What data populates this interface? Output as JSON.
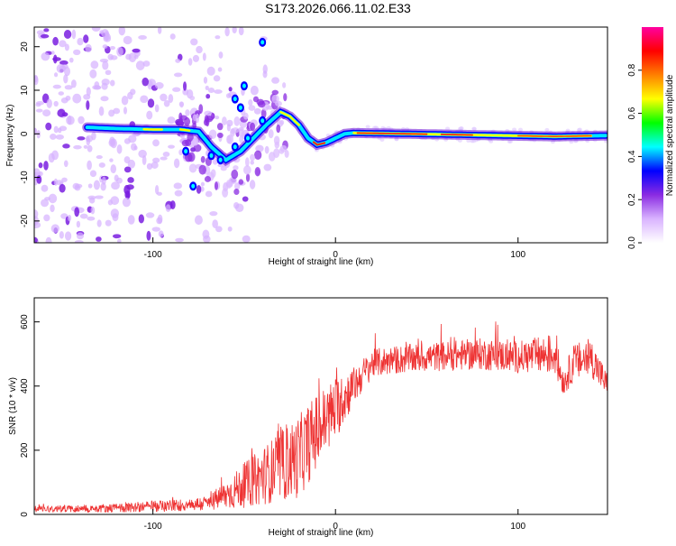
{
  "title": "S173.2026.066.11.02.E33",
  "chart_data": [
    {
      "type": "heatmap",
      "xlabel": "Height of straight line (km)",
      "ylabel": "Frequency (Hz)",
      "xlim": [
        -165,
        149
      ],
      "ylim": [
        -25,
        24.5
      ],
      "xticks": [
        -100,
        0,
        100
      ],
      "xtick_labels": [
        "-100",
        "0",
        "100"
      ],
      "yticks": [
        -20,
        -10,
        0,
        10,
        20
      ],
      "ytick_labels": [
        "-20",
        "-10",
        "0",
        "10",
        "20"
      ],
      "colorbar": {
        "label": "Normalized spectral amplitude",
        "range": [
          0,
          1
        ],
        "ticks": [
          0,
          0.2,
          0.4,
          0.6,
          0.8
        ],
        "tick_labels": [
          "0.0",
          "0.2",
          "0.4",
          "0.6",
          "0.8"
        ],
        "colormap": [
          "#ffffff",
          "#d9b3ff",
          "#8a2be2",
          "#0000ff",
          "#00ffff",
          "#00ff00",
          "#ffff00",
          "#ff8000",
          "#ff0000",
          "#ff00a0"
        ]
      },
      "ridge_track": {
        "x": [
          -136,
          -120,
          -100,
          -85,
          -75,
          -68,
          -60,
          -52,
          -45,
          -38,
          -30,
          -25,
          -20,
          -15,
          -10,
          -5,
          0,
          5,
          10,
          40,
          80,
          120,
          148
        ],
        "y": [
          1.5,
          1.2,
          1.0,
          1.0,
          0.5,
          -3,
          -6,
          -4,
          -1,
          2,
          5,
          4,
          2,
          -1,
          -2.5,
          -2,
          -1,
          0,
          0.2,
          0,
          -0.3,
          -0.6,
          -0.4
        ]
      }
    },
    {
      "type": "line",
      "xlabel": "Height of straight line (km)",
      "ylabel": "SNR (10 * v/v)",
      "xlim": [
        -165,
        149
      ],
      "ylim": [
        0,
        675
      ],
      "xticks": [
        -100,
        0,
        100
      ],
      "xtick_labels": [
        "-100",
        "0",
        "100"
      ],
      "yticks": [
        0,
        200,
        400,
        600
      ],
      "ytick_labels": [
        "0",
        "200",
        "400",
        "600"
      ],
      "color": "#ee3333",
      "envelope": {
        "x": [
          -165,
          -140,
          -120,
          -100,
          -80,
          -70,
          -60,
          -50,
          -40,
          -30,
          -20,
          -10,
          0,
          10,
          20,
          30,
          50,
          80,
          100,
          120,
          125,
          130,
          140,
          149
        ],
        "mean": [
          18,
          18,
          20,
          25,
          30,
          35,
          60,
          90,
          120,
          150,
          180,
          260,
          330,
          400,
          470,
          480,
          490,
          500,
          490,
          500,
          410,
          470,
          490,
          400
        ],
        "amplitude": [
          10,
          12,
          14,
          18,
          20,
          25,
          45,
          70,
          90,
          110,
          130,
          120,
          100,
          60,
          45,
          45,
          45,
          50,
          50,
          65,
          40,
          60,
          60,
          40
        ]
      }
    }
  ]
}
